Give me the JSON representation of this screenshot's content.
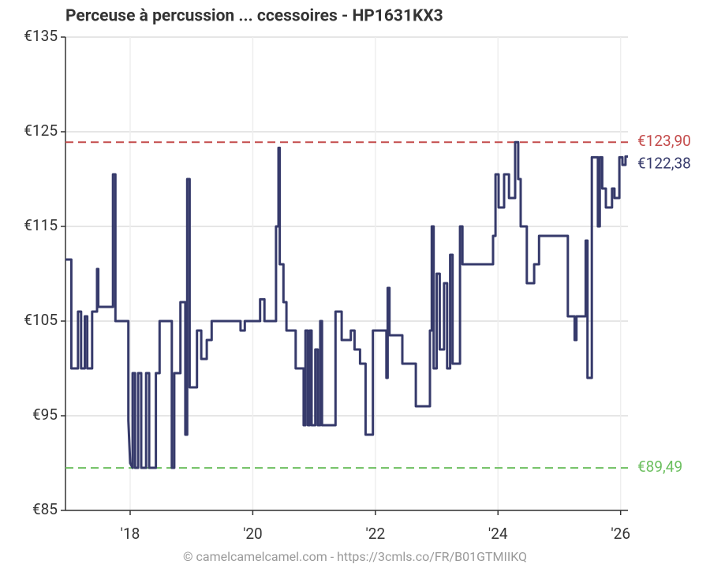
{
  "chart_data": {
    "type": "line",
    "title": "Perceuse à percussion ... ccessoires - HP1631KX3",
    "footer": "© camelcamelcamel.com - https://3cmls.co/FR/B01GTMIIKQ",
    "color": "#363a6b",
    "grid": true,
    "xlim": [
      2016.945,
      2026.12
    ],
    "xticks": [
      {
        "value": 2018,
        "label": "'18"
      },
      {
        "value": 2020,
        "label": "'20"
      },
      {
        "value": 2022,
        "label": "'22"
      },
      {
        "value": 2024,
        "label": "'24"
      },
      {
        "value": 2026,
        "label": "'26"
      }
    ],
    "ylim": [
      85,
      135
    ],
    "yticks": [
      {
        "value": 85,
        "label": "€85"
      },
      {
        "value": 95,
        "label": "€95"
      },
      {
        "value": 105,
        "label": "€105"
      },
      {
        "value": 115,
        "label": "€115"
      },
      {
        "value": 125,
        "label": "€125"
      },
      {
        "value": 135,
        "label": "€135"
      }
    ],
    "reference_lines": [
      {
        "value": 123.9,
        "label": "€123,90",
        "color": "#c44b4b"
      },
      {
        "value": 89.49,
        "label": "€89,49",
        "color": "#6cbf5f"
      }
    ],
    "current": {
      "value": 122.38,
      "label": "€122,38",
      "color": "#363a6b"
    },
    "x": [
      2016.945,
      2017.04,
      2017.04,
      2017.15,
      2017.15,
      2017.2,
      2017.2,
      2017.26,
      2017.26,
      2017.3,
      2017.3,
      2017.38,
      2017.38,
      2017.46,
      2017.46,
      2017.48,
      2017.48,
      2017.72,
      2017.72,
      2017.76,
      2017.76,
      2017.97,
      2017.97,
      2018.0,
      2018.04,
      2018.04,
      2018.08,
      2018.08,
      2018.13,
      2018.13,
      2018.18,
      2018.18,
      2018.26,
      2018.26,
      2018.31,
      2018.31,
      2018.42,
      2018.42,
      2018.48,
      2018.48,
      2018.68,
      2018.68,
      2018.72,
      2018.72,
      2018.82,
      2018.82,
      2018.9,
      2018.9,
      2018.93,
      2018.93,
      2018.97,
      2018.97,
      2019.09,
      2019.09,
      2019.16,
      2019.16,
      2019.25,
      2019.25,
      2019.33,
      2019.33,
      2019.8,
      2019.8,
      2019.87,
      2019.87,
      2020.12,
      2020.12,
      2020.19,
      2020.19,
      2020.38,
      2020.38,
      2020.42,
      2020.42,
      2020.44,
      2020.44,
      2020.5,
      2020.5,
      2020.55,
      2020.55,
      2020.7,
      2020.7,
      2020.83,
      2020.83,
      2020.86,
      2020.86,
      2020.9,
      2020.9,
      2020.93,
      2020.93,
      2020.96,
      2020.96,
      2021.02,
      2021.02,
      2021.06,
      2021.06,
      2021.1,
      2021.1,
      2021.13,
      2021.13,
      2021.35,
      2021.35,
      2021.45,
      2021.45,
      2021.6,
      2021.6,
      2021.66,
      2021.66,
      2021.75,
      2021.75,
      2021.84,
      2021.84,
      2021.96,
      2021.96,
      2022.18,
      2022.18,
      2022.2,
      2022.2,
      2022.23,
      2022.23,
      2022.44,
      2022.44,
      2022.66,
      2022.66,
      2022.89,
      2022.89,
      2022.92,
      2022.92,
      2022.95,
      2022.95,
      2023.0,
      2023.0,
      2023.05,
      2023.05,
      2023.12,
      2023.12,
      2023.17,
      2023.17,
      2023.22,
      2023.22,
      2023.26,
      2023.26,
      2023.38,
      2023.38,
      2023.42,
      2023.42,
      2023.92,
      2023.92,
      2023.96,
      2023.96,
      2024.01,
      2024.01,
      2024.1,
      2024.1,
      2024.18,
      2024.18,
      2024.28,
      2024.28,
      2024.33,
      2024.33,
      2024.37,
      2024.37,
      2024.47,
      2024.47,
      2024.59,
      2024.59,
      2024.67,
      2024.67,
      2025.14,
      2025.14,
      2025.25,
      2025.25,
      2025.28,
      2025.28,
      2025.43,
      2025.43,
      2025.46,
      2025.46,
      2025.53,
      2025.53,
      2025.63,
      2025.63,
      2025.66,
      2025.66,
      2025.7,
      2025.7,
      2025.76,
      2025.76,
      2025.86,
      2025.86,
      2025.9,
      2025.9,
      2025.98,
      2025.98,
      2026.03,
      2026.03,
      2026.08,
      2026.08,
      2026.12
    ],
    "values": [
      111.5,
      111.5,
      100,
      100,
      106,
      106,
      100,
      100,
      105.5,
      105.5,
      100,
      100,
      106,
      106,
      110.5,
      110.5,
      106.5,
      106.5,
      120.5,
      120.5,
      105,
      105,
      94.5,
      90,
      89.5,
      99.5,
      99.5,
      89.5,
      89.5,
      99.5,
      99.5,
      89.5,
      89.5,
      99.5,
      99.5,
      89.5,
      89.5,
      99.5,
      99.5,
      105,
      105,
      89.5,
      89.5,
      99.5,
      99.5,
      107,
      107,
      93,
      93,
      120,
      120,
      98,
      98,
      104,
      104,
      101,
      101,
      103,
      103,
      105,
      105,
      104,
      104,
      105,
      105,
      107.3,
      107.3,
      105,
      105,
      115,
      115,
      123.3,
      123.3,
      111,
      111,
      107,
      107,
      104,
      104,
      100,
      100,
      94,
      94,
      104,
      104,
      94,
      94,
      104,
      104,
      94,
      94,
      102,
      102,
      94,
      94,
      105,
      105,
      94,
      94,
      106,
      106,
      103,
      103,
      104,
      104,
      102,
      102,
      100.5,
      100.5,
      93,
      93,
      104,
      104,
      99,
      99,
      108.5,
      108.5,
      103.5,
      103.5,
      100.5,
      100.5,
      96,
      96,
      104,
      104,
      115,
      115,
      100,
      100,
      110,
      110,
      102,
      102,
      109,
      109,
      100,
      100,
      112,
      112,
      100.5,
      100.5,
      115,
      115,
      111,
      111,
      114,
      114,
      120.5,
      120.5,
      117,
      117,
      120.5,
      120.5,
      118,
      118,
      123.9,
      123.9,
      120,
      120,
      115,
      115,
      109,
      109,
      111,
      111,
      114,
      114,
      105.5,
      105.5,
      103,
      103,
      105.5,
      105.5,
      113.5,
      113.5,
      99,
      99,
      122.3,
      122.3,
      115,
      115,
      122.3,
      122.3,
      119,
      119,
      117,
      117,
      119,
      119,
      118,
      118,
      122.3,
      122.3,
      121.5,
      121.5,
      122.38,
      122.38
    ]
  }
}
